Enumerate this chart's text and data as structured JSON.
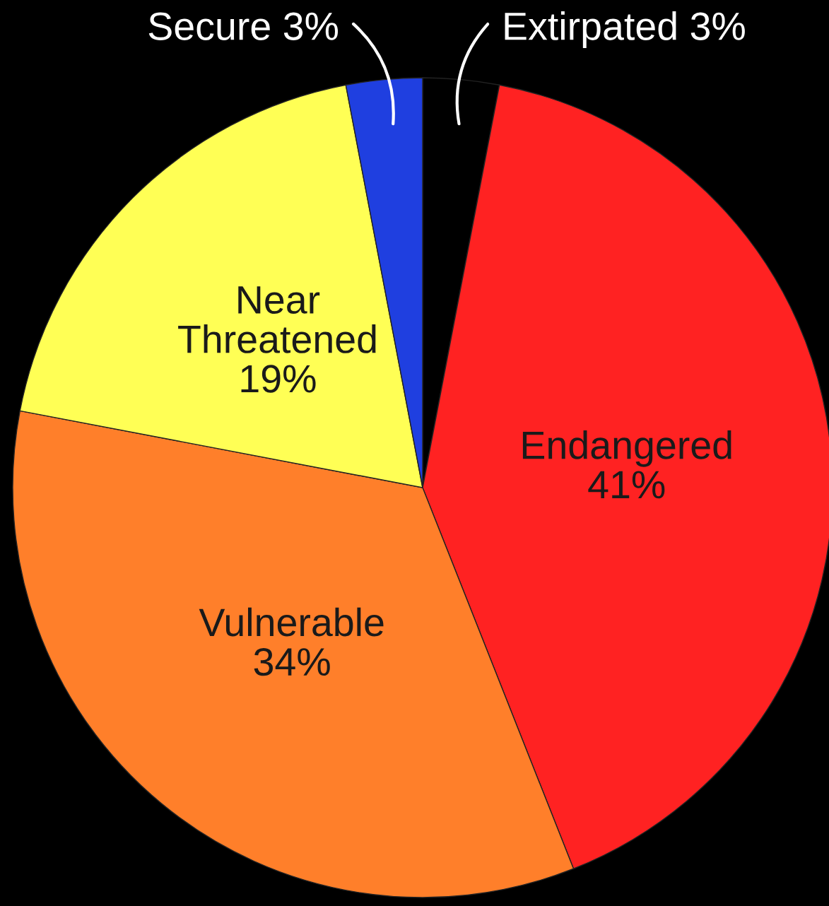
{
  "chart_data": {
    "type": "pie",
    "categories": [
      "Extirpated",
      "Endangered",
      "Vulnerable",
      "Near Threatened",
      "Secure"
    ],
    "values": [
      3,
      41,
      34,
      19,
      3
    ],
    "value_labels": [
      "3%",
      "41%",
      "34%",
      "19%",
      "3%"
    ],
    "colors": [
      "#000000",
      "#ff2222",
      "#ff7f2a",
      "#ffff55",
      "#1f3fe0"
    ],
    "legend": false
  }
}
